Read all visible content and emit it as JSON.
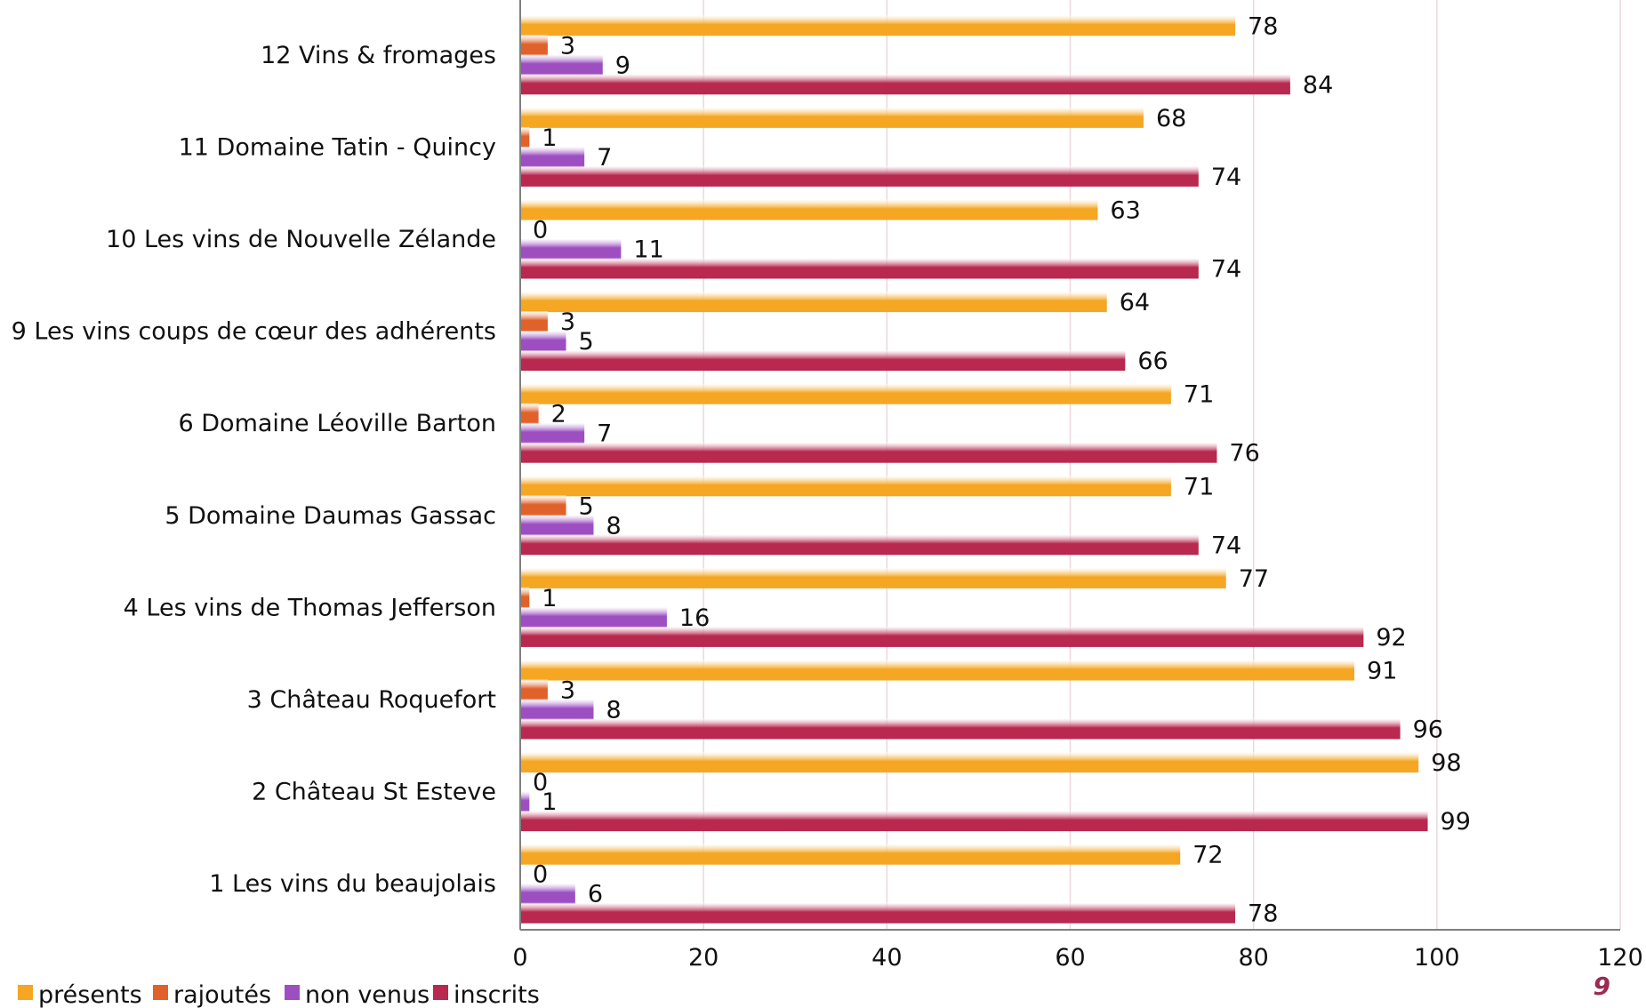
{
  "page_number": "9",
  "chart_data": {
    "type": "bar",
    "orientation": "horizontal",
    "title": "",
    "categories": [
      "1 Les vins du beaujolais",
      "2 Château St Esteve",
      "3 Château Roquefort",
      "4 Les vins de Thomas Jefferson",
      "5 Domaine Daumas Gassac",
      "6 Domaine Léoville Barton",
      "9 Les vins coups de cœur des adhérents",
      "10 Les vins de Nouvelle Zélande",
      "11 Domaine Tatin - Quincy",
      "12 Vins & fromages"
    ],
    "series": [
      {
        "name": "présents",
        "color": "#f5a623",
        "values": [
          72,
          98,
          91,
          77,
          71,
          71,
          64,
          63,
          68,
          78
        ]
      },
      {
        "name": "rajoutés",
        "color": "#e0622a",
        "values": [
          0,
          0,
          3,
          1,
          5,
          2,
          3,
          0,
          1,
          3
        ]
      },
      {
        "name": "non venus",
        "color": "#9d4fc2",
        "values": [
          6,
          1,
          8,
          16,
          8,
          7,
          5,
          11,
          7,
          9
        ]
      },
      {
        "name": "inscrits",
        "color": "#b8284f",
        "values": [
          78,
          99,
          96,
          92,
          74,
          76,
          66,
          74,
          74,
          84
        ]
      }
    ],
    "xlim": [
      0,
      120
    ],
    "xticks": [
      0,
      20,
      40,
      60,
      80,
      100,
      120
    ],
    "grid": true,
    "legend": "bottom-left",
    "data_labels": true
  }
}
